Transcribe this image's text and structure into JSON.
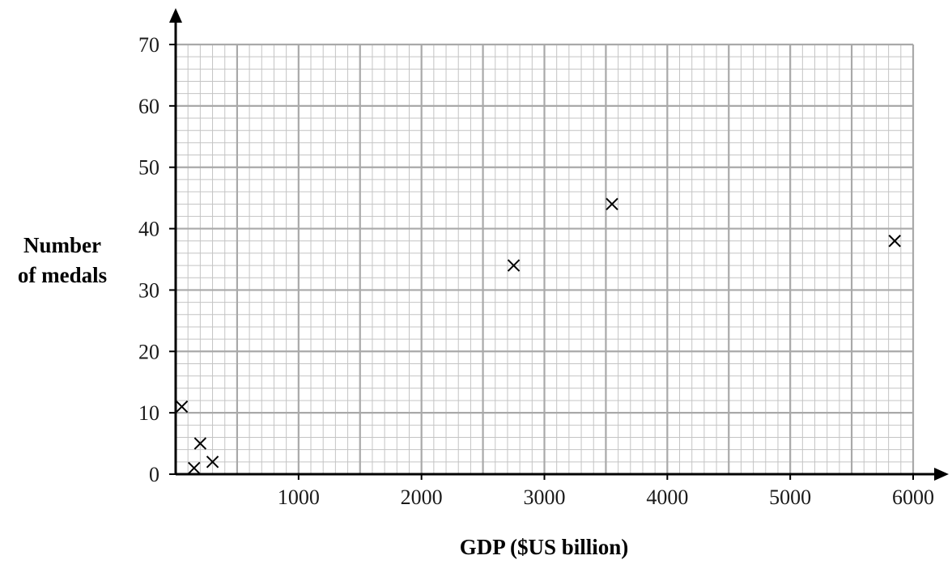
{
  "chart_data": {
    "type": "scatter",
    "title": "",
    "xlabel": "GDP ($US billion)",
    "ylabel_lines": [
      "Number",
      "of medals"
    ],
    "xlim": [
      0,
      6000
    ],
    "ylim": [
      0,
      70
    ],
    "x_ticks": [
      1000,
      2000,
      3000,
      4000,
      5000,
      6000
    ],
    "y_ticks": [
      0,
      10,
      20,
      30,
      40,
      50,
      60,
      70
    ],
    "x_major_step": 500,
    "x_minor_step": 100,
    "y_major_step": 10,
    "y_minor_step": 2,
    "grid": true,
    "marker": "cross",
    "series": [
      {
        "points": [
          {
            "x": 50,
            "y": 11
          },
          {
            "x": 150,
            "y": 1
          },
          {
            "x": 200,
            "y": 5
          },
          {
            "x": 300,
            "y": 2
          },
          {
            "x": 2750,
            "y": 34
          },
          {
            "x": 3550,
            "y": 44
          },
          {
            "x": 5850,
            "y": 38
          }
        ]
      }
    ]
  }
}
